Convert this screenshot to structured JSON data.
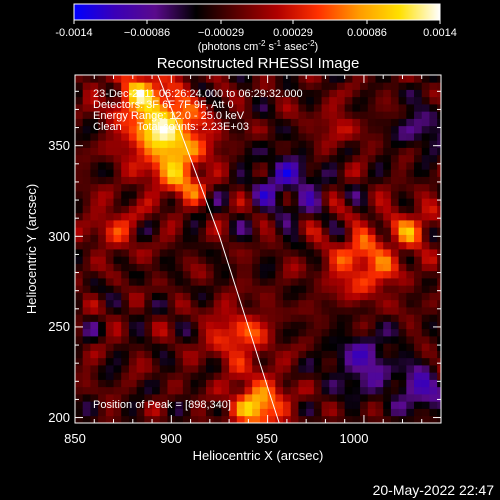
{
  "colorbar": {
    "ticks": [
      "-0.0014",
      "−0.00086",
      "−0.00029",
      "0.00029",
      "0.00086",
      "0.0014"
    ],
    "min": -0.0014,
    "max": 0.0014,
    "units_line": [
      "(photons cm",
      "-2",
      " s",
      "-1",
      " asec",
      "-2",
      ")"
    ],
    "colors": [
      "#0000ff",
      "#3a00b8",
      "#5a0a8c",
      "#000000",
      "#5a0000",
      "#b00000",
      "#ff3000",
      "#ff9a00",
      "#ffe000",
      "#ffffff"
    ]
  },
  "title": "Reconstructed RHESSI Image",
  "info_lines": [
    "23-Dec-2011 06:26:24.000 to 06:29:32.000",
    "Detectors: 3F 6F 7F 9F, Att 0",
    "Energy Range: 12.0 - 25.0 keV",
    "Clean     Total counts: 2.23E+03"
  ],
  "peak_label": "Position of Peak = [898,340]",
  "footer_date": "20-May-2022 22:47",
  "chart_data": {
    "type": "heatmap",
    "title": "Reconstructed RHESSI Image",
    "xlabel": "Heliocentric X (arcsec)",
    "ylabel": "Heliocentric Y (arcsec)",
    "xlim": [
      850,
      1040
    ],
    "ylim": [
      197,
      389
    ],
    "xticks": [
      850,
      900,
      950,
      1000
    ],
    "yticks": [
      200,
      250,
      300,
      350
    ],
    "xticklabels": [
      "850",
      "900",
      "950",
      "1000"
    ],
    "yticklabels": [
      "200",
      "250",
      "300",
      "350"
    ],
    "value_range": [
      -0.0014,
      0.0014
    ],
    "peak": [
      898,
      340
    ],
    "colormap": "blue-purple-black-red-yellow-white",
    "grid": false,
    "limb_line": [
      [
        893,
        389
      ],
      [
        904,
        360
      ],
      [
        925,
        300
      ],
      [
        940,
        250
      ],
      [
        952,
        210
      ],
      [
        956,
        197
      ]
    ],
    "sources": [
      {
        "x": 898,
        "y": 355,
        "amplitude": 1.0,
        "sigma": 14
      },
      {
        "x": 885,
        "y": 378,
        "amplitude": 0.65,
        "sigma": 11
      },
      {
        "x": 905,
        "y": 330,
        "amplitude": 0.55,
        "sigma": 8
      },
      {
        "x": 945,
        "y": 207,
        "amplitude": 0.85,
        "sigma": 10
      },
      {
        "x": 935,
        "y": 245,
        "amplitude": 0.55,
        "sigma": 11
      },
      {
        "x": 1000,
        "y": 285,
        "amplitude": 0.6,
        "sigma": 13
      },
      {
        "x": 1025,
        "y": 305,
        "amplitude": 0.45,
        "sigma": 9
      },
      {
        "x": 870,
        "y": 305,
        "amplitude": 0.35,
        "sigma": 10
      },
      {
        "x": 985,
        "y": 360,
        "amplitude": 0.25,
        "sigma": 9
      },
      {
        "x": 1030,
        "y": 215,
        "amplitude": -0.55,
        "sigma": 8
      },
      {
        "x": 960,
        "y": 330,
        "amplitude": -0.45,
        "sigma": 12
      },
      {
        "x": 1000,
        "y": 230,
        "amplitude": -0.45,
        "sigma": 12
      },
      {
        "x": 1030,
        "y": 360,
        "amplitude": -0.35,
        "sigma": 9
      }
    ]
  }
}
